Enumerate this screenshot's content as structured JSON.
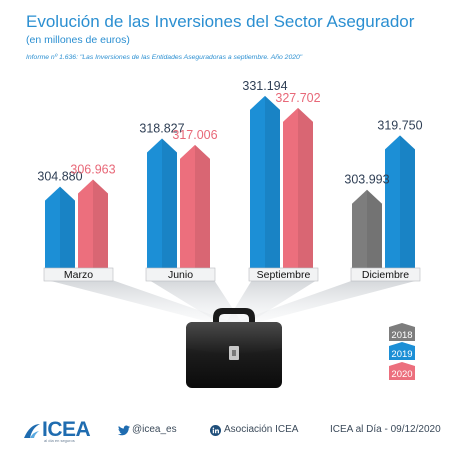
{
  "header": {
    "title": "Evolución de las Inversiones del Sector Asegurador",
    "subtitle": "(en millones de euros)",
    "source": "Informe nº 1.636: \"Las Inversiones de las Entidades Aseguradoras a septiembre. Año 2020\""
  },
  "chart_data": {
    "type": "bar",
    "categories": [
      "Marzo",
      "Junio",
      "Septiembre",
      "Diciembre"
    ],
    "series": [
      {
        "name": "2018",
        "color": "#7d7d7d",
        "values": [
          null,
          null,
          null,
          303.993
        ],
        "labels": [
          "",
          "",
          "",
          "303.993"
        ]
      },
      {
        "name": "2019",
        "color": "#1c8fd6",
        "values": [
          304.88,
          318.827,
          331.194,
          319.75
        ],
        "labels": [
          "304.880",
          "318.827",
          "331.194",
          "319.750"
        ]
      },
      {
        "name": "2020",
        "color": "#ec6f7d",
        "values": [
          306.963,
          317.006,
          327.702,
          null
        ],
        "labels": [
          "306.963",
          "317.006",
          "327.702",
          ""
        ]
      }
    ],
    "legend": [
      "2018",
      "2019",
      "2020"
    ],
    "legend_position": "right"
  },
  "footer": {
    "logo": "ICEA",
    "logo_tagline": "al día en seguros",
    "twitter": "@icea_es",
    "linkedin": "Asociación ICEA",
    "date": "ICEA al Día - 09/12/2020"
  },
  "colors": {
    "title": "#2b8fd1",
    "series_2018": "#7d7d7d",
    "series_2019": "#1c8fd6",
    "series_2020": "#ec6f7d"
  }
}
